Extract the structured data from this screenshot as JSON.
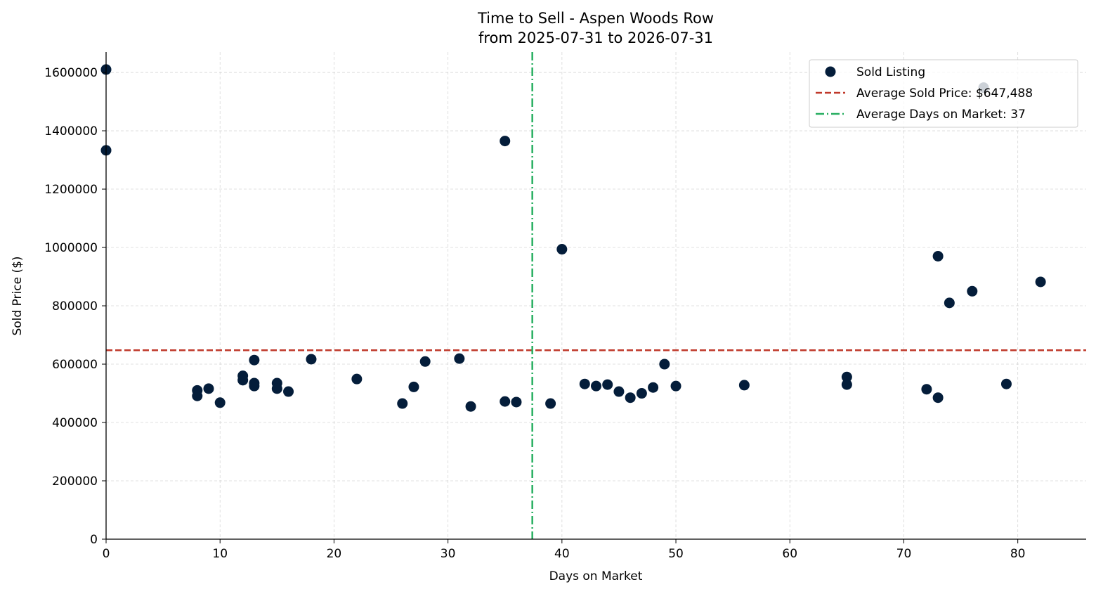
{
  "chart_data": {
    "type": "scatter",
    "title": "Time to Sell - Aspen Woods Row",
    "subtitle": "from 2025-07-31 to 2026-07-31",
    "xlabel": "Days on Market",
    "ylabel": "Sold Price ($)",
    "xlim": [
      0,
      86
    ],
    "ylim": [
      0,
      1670000
    ],
    "xticks": [
      0,
      10,
      20,
      30,
      40,
      50,
      60,
      70,
      80
    ],
    "yticks": [
      0,
      200000,
      400000,
      600000,
      800000,
      1000000,
      1200000,
      1400000,
      1600000
    ],
    "grid": true,
    "legend_position": "top-right",
    "colors": {
      "points": "#041d3a",
      "avg_price": "#c0392b",
      "avg_days": "#27ae60"
    },
    "series": [
      {
        "name": "Sold Listing",
        "points": [
          [
            0,
            1610000
          ],
          [
            0,
            1333000
          ],
          [
            8,
            510000
          ],
          [
            8,
            491000
          ],
          [
            9,
            516000
          ],
          [
            10,
            468000
          ],
          [
            12,
            560000
          ],
          [
            12,
            545000
          ],
          [
            13,
            614000
          ],
          [
            13,
            535000
          ],
          [
            13,
            525000
          ],
          [
            15,
            535000
          ],
          [
            15,
            516000
          ],
          [
            16,
            506000
          ],
          [
            18,
            617000
          ],
          [
            22,
            549000
          ],
          [
            26,
            465000
          ],
          [
            27,
            522000
          ],
          [
            28,
            609000
          ],
          [
            31,
            619000
          ],
          [
            32,
            455000
          ],
          [
            35,
            1365000
          ],
          [
            35,
            472000
          ],
          [
            36,
            470000
          ],
          [
            39,
            465000
          ],
          [
            40,
            994000
          ],
          [
            42,
            532000
          ],
          [
            43,
            525000
          ],
          [
            44,
            530000
          ],
          [
            45,
            506000
          ],
          [
            46,
            485000
          ],
          [
            47,
            500000
          ],
          [
            48,
            520000
          ],
          [
            49,
            600000
          ],
          [
            50,
            525000
          ],
          [
            56,
            528000
          ],
          [
            65,
            556000
          ],
          [
            65,
            530000
          ],
          [
            72,
            514000
          ],
          [
            73,
            970000
          ],
          [
            73,
            485000
          ],
          [
            74,
            810000
          ],
          [
            76,
            850000
          ],
          [
            77,
            1548000
          ],
          [
            79,
            532000
          ],
          [
            82,
            882000
          ]
        ]
      }
    ],
    "reference_lines": [
      {
        "name": "Average Sold Price: $647,488",
        "axis": "y",
        "value": 647488,
        "style": "dashed"
      },
      {
        "name": "Average Days on Market: 37",
        "axis": "x",
        "value": 37.4,
        "style": "dashdot"
      }
    ]
  }
}
